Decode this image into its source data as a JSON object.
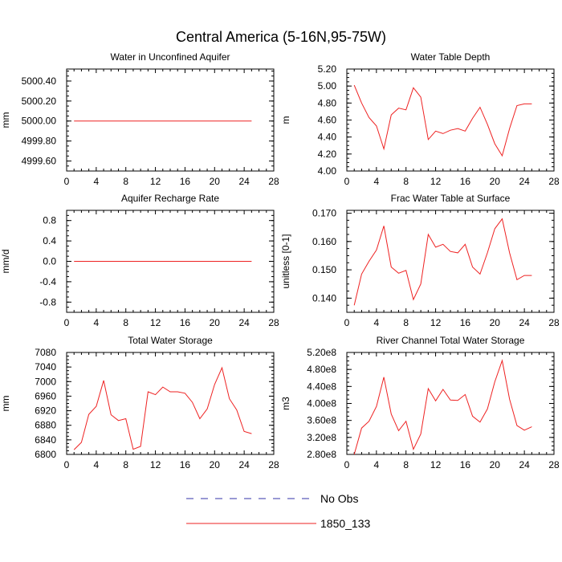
{
  "figure": {
    "title": "Central America (5-16N,95-75W)"
  },
  "legend": [
    {
      "label": "No Obs",
      "color": "#3333aa",
      "dash": true
    },
    {
      "label": "1850_133",
      "color": "#ee2222",
      "dash": false
    }
  ],
  "chart_data": [
    {
      "type": "line",
      "title": "Water in Unconfined Aquifer",
      "xlabel": "",
      "ylabel": "mm",
      "xlim": [
        0,
        28
      ],
      "ylim": [
        4999.5,
        5000.52
      ],
      "xticks": [
        0,
        4,
        8,
        12,
        16,
        20,
        24,
        28
      ],
      "yticks": [
        4999.6,
        4999.8,
        5000.0,
        5000.2,
        5000.4
      ],
      "ytick_labels": [
        "4999.60",
        "4999.80",
        "5000.00",
        "5000.20",
        "5000.40"
      ],
      "x": [
        1,
        2,
        3,
        4,
        5,
        6,
        7,
        8,
        9,
        10,
        11,
        12,
        13,
        14,
        15,
        16,
        17,
        18,
        19,
        20,
        21,
        22,
        23,
        24,
        25
      ],
      "series": [
        {
          "name": "1850_133",
          "color": "#ee2222",
          "values": [
            5000,
            5000,
            5000,
            5000,
            5000,
            5000,
            5000,
            5000,
            5000,
            5000,
            5000,
            5000,
            5000,
            5000,
            5000,
            5000,
            5000,
            5000,
            5000,
            5000,
            5000,
            5000,
            5000,
            5000,
            5000
          ]
        }
      ]
    },
    {
      "type": "line",
      "title": "Water Table Depth",
      "xlabel": "",
      "ylabel": "m",
      "xlim": [
        0,
        28
      ],
      "ylim": [
        4.0,
        5.2
      ],
      "xticks": [
        0,
        4,
        8,
        12,
        16,
        20,
        24,
        28
      ],
      "yticks": [
        4.0,
        4.2,
        4.4,
        4.6,
        4.8,
        5.0,
        5.2
      ],
      "ytick_labels": [
        "4.00",
        "4.20",
        "4.40",
        "4.60",
        "4.80",
        "5.00",
        "5.20"
      ],
      "x": [
        1,
        2,
        3,
        4,
        5,
        6,
        7,
        8,
        9,
        10,
        11,
        12,
        13,
        14,
        15,
        16,
        17,
        18,
        19,
        20,
        21,
        22,
        23,
        24,
        25
      ],
      "series": [
        {
          "name": "1850_133",
          "color": "#ee2222",
          "values": [
            5.01,
            4.8,
            4.63,
            4.53,
            4.26,
            4.66,
            4.74,
            4.72,
            4.98,
            4.87,
            4.37,
            4.47,
            4.44,
            4.48,
            4.5,
            4.47,
            4.62,
            4.75,
            4.55,
            4.32,
            4.18,
            4.5,
            4.77,
            4.79,
            4.79
          ]
        }
      ]
    },
    {
      "type": "line",
      "title": "Aquifer Recharge Rate",
      "xlabel": "",
      "ylabel": "mm/d",
      "xlim": [
        0,
        28
      ],
      "ylim": [
        -1.0,
        1.0
      ],
      "xticks": [
        0,
        4,
        8,
        12,
        16,
        20,
        24,
        28
      ],
      "yticks": [
        -0.8,
        -0.4,
        0.0,
        0.4,
        0.8
      ],
      "ytick_labels": [
        "-0.8",
        "-0.4",
        "0.0",
        "0.4",
        "0.8"
      ],
      "x": [
        1,
        2,
        3,
        4,
        5,
        6,
        7,
        8,
        9,
        10,
        11,
        12,
        13,
        14,
        15,
        16,
        17,
        18,
        19,
        20,
        21,
        22,
        23,
        24,
        25
      ],
      "series": [
        {
          "name": "1850_133",
          "color": "#ee2222",
          "values": [
            0,
            0,
            0,
            0,
            0,
            0,
            0,
            0,
            0,
            0,
            0,
            0,
            0,
            0,
            0,
            0,
            0,
            0,
            0,
            0,
            0,
            0,
            0,
            0,
            0
          ]
        }
      ]
    },
    {
      "type": "line",
      "title": "Frac Water Table at Surface",
      "xlabel": "",
      "ylabel": "unitless [0-1]",
      "xlim": [
        0,
        28
      ],
      "ylim": [
        0.135,
        0.171
      ],
      "xticks": [
        0,
        4,
        8,
        12,
        16,
        20,
        24,
        28
      ],
      "yticks": [
        0.14,
        0.15,
        0.16,
        0.17
      ],
      "ytick_labels": [
        "0.140",
        "0.150",
        "0.160",
        "0.170"
      ],
      "x": [
        1,
        2,
        3,
        4,
        5,
        6,
        7,
        8,
        9,
        10,
        11,
        12,
        13,
        14,
        15,
        16,
        17,
        18,
        19,
        20,
        21,
        22,
        23,
        24,
        25
      ],
      "series": [
        {
          "name": "1850_133",
          "color": "#ee2222",
          "values": [
            0.1375,
            0.1485,
            0.153,
            0.157,
            0.1655,
            0.151,
            0.1488,
            0.1498,
            0.1395,
            0.145,
            0.1625,
            0.158,
            0.159,
            0.1565,
            0.156,
            0.159,
            0.151,
            0.1485,
            0.156,
            0.1645,
            0.168,
            0.156,
            0.1465,
            0.148,
            0.148
          ]
        }
      ]
    },
    {
      "type": "line",
      "title": "Total Water Storage",
      "xlabel": "",
      "ylabel": "mm",
      "xlim": [
        0,
        28
      ],
      "ylim": [
        6800,
        7080
      ],
      "xticks": [
        0,
        4,
        8,
        12,
        16,
        20,
        24,
        28
      ],
      "yticks": [
        6800,
        6840,
        6880,
        6920,
        6960,
        7000,
        7040,
        7080
      ],
      "ytick_labels": [
        "6800",
        "6840",
        "6880",
        "6920",
        "6960",
        "7000",
        "7040",
        "7080"
      ],
      "x": [
        1,
        2,
        3,
        4,
        5,
        6,
        7,
        8,
        9,
        10,
        11,
        12,
        13,
        14,
        15,
        16,
        17,
        18,
        19,
        20,
        21,
        22,
        23,
        24,
        25
      ],
      "series": [
        {
          "name": "1850_133",
          "color": "#ee2222",
          "values": [
            6813,
            6833,
            6910,
            6932,
            7003,
            6909,
            6893,
            6898,
            6814,
            6822,
            6972,
            6964,
            6985,
            6972,
            6972,
            6968,
            6943,
            6898,
            6925,
            6992,
            7038,
            6953,
            6922,
            6863,
            6857
          ]
        }
      ]
    },
    {
      "type": "line",
      "title": "River Channel Total Water Storage",
      "xlabel": "",
      "ylabel": "m3",
      "xlim": [
        0,
        28
      ],
      "ylim": [
        280000000.0,
        520000000.0
      ],
      "xticks": [
        0,
        4,
        8,
        12,
        16,
        20,
        24,
        28
      ],
      "yticks": [
        280000000.0,
        320000000.0,
        360000000.0,
        400000000.0,
        440000000.0,
        480000000.0,
        520000000.0
      ],
      "ytick_labels": [
        "2.80e8",
        "3.20e8",
        "3.60e8",
        "4.00e8",
        "4.40e8",
        "4.80e8",
        "5.20e8"
      ],
      "x": [
        1,
        2,
        3,
        4,
        5,
        6,
        7,
        8,
        9,
        10,
        11,
        12,
        13,
        14,
        15,
        16,
        17,
        18,
        19,
        20,
        21,
        22,
        23,
        24,
        25
      ],
      "series": [
        {
          "name": "1850_133",
          "color": "#ee2222",
          "values": [
            280000000.0,
            342000000.0,
            358000000.0,
            393000000.0,
            462000000.0,
            375000000.0,
            336000000.0,
            358000000.0,
            292000000.0,
            328000000.0,
            435000000.0,
            406000000.0,
            433000000.0,
            408000000.0,
            407000000.0,
            421000000.0,
            370000000.0,
            356000000.0,
            387000000.0,
            451000000.0,
            501000000.0,
            410000000.0,
            348000000.0,
            337000000.0,
            345000000.0
          ]
        }
      ]
    }
  ]
}
